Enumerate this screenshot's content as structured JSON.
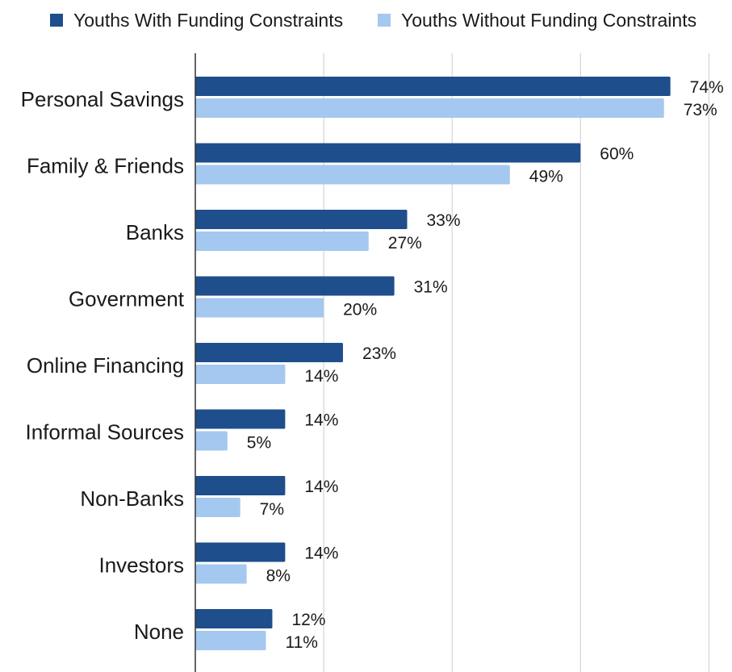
{
  "chart_data": {
    "type": "bar",
    "orientation": "horizontal",
    "categories": [
      "Personal Savings",
      "Family & Friends",
      "Banks",
      "Government",
      "Online Financing",
      "Informal Sources",
      "Non-Banks",
      "Investors",
      "None"
    ],
    "series": [
      {
        "name": "Youths With Funding Constraints",
        "color": "#1f4e8c",
        "values": [
          74,
          60,
          33,
          31,
          23,
          14,
          14,
          14,
          12
        ],
        "labels": [
          "74%",
          "60%",
          "33%",
          "31%",
          "23%",
          "14%",
          "14%",
          "14%",
          "12%"
        ]
      },
      {
        "name": "Youths Without Funding Constraints",
        "color": "#a4c8ef",
        "values": [
          73,
          49,
          27,
          20,
          14,
          5,
          7,
          8,
          11
        ],
        "labels": [
          "73%",
          "49%",
          "27%",
          "20%",
          "14%",
          "5%",
          "7%",
          "8%",
          "11%"
        ]
      }
    ],
    "value_unit": "%",
    "xlim": [
      0,
      80
    ],
    "gridlines": [
      20,
      40,
      60,
      80
    ],
    "grid": true,
    "legend_position": "top",
    "title": "",
    "xlabel": "",
    "ylabel": ""
  }
}
